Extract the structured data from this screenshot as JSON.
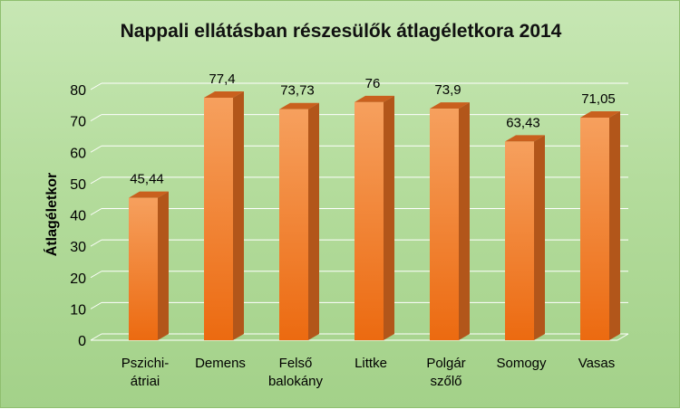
{
  "chart_data": {
    "type": "bar",
    "title": "Nappali ellátásban részesülők átlagéletkora 2014",
    "ylabel": "Átlagéletkor",
    "xlabel": "",
    "categories": [
      [
        "Pszichi-",
        "átriai"
      ],
      [
        "Demens"
      ],
      [
        "Felső",
        "balokány"
      ],
      [
        "Littke"
      ],
      [
        "Polgár",
        "szőlő"
      ],
      [
        "Somogy"
      ],
      [
        "Vasas"
      ]
    ],
    "values": [
      45.44,
      77.4,
      73.73,
      76,
      73.9,
      63.43,
      71.05
    ],
    "value_labels": [
      "45,44",
      "77,4",
      "73,73",
      "76",
      "73,9",
      "63,43",
      "71,05"
    ],
    "ylim": [
      0,
      80
    ],
    "yticks": [
      "0",
      "10",
      "20",
      "30",
      "40",
      "50",
      "60",
      "70",
      "80"
    ],
    "grid": true,
    "legend": "none",
    "colors": {
      "bar_front": "#f07a22",
      "bar_side": "#b2561a",
      "bar_top": "#c9601e",
      "grid": "#ffffff"
    }
  }
}
